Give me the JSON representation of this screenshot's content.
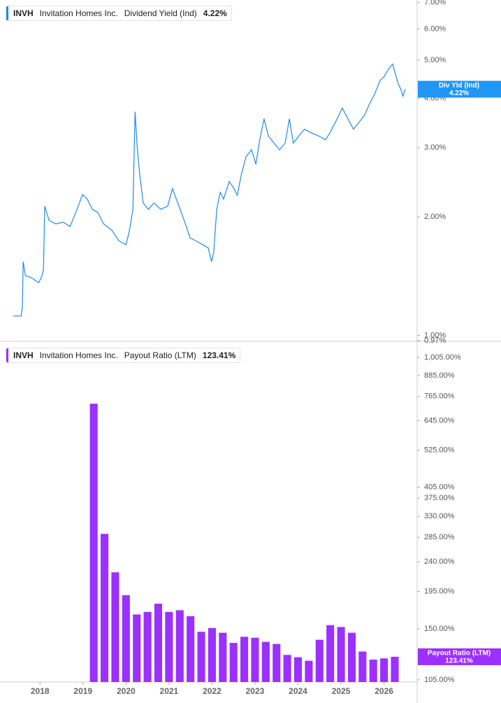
{
  "chart_data": [
    {
      "type": "line",
      "ticker": "INVH",
      "company": "Invitation Homes Inc.",
      "log_y": true,
      "xlim": [
        2017.07,
        2026.77
      ],
      "ylim": [
        0.97,
        7.11
      ],
      "yticks": [
        {
          "value": 0.97,
          "label": "0.97%"
        },
        {
          "value": 1,
          "label": "1.00%"
        },
        {
          "value": 2,
          "label": "2.00%"
        },
        {
          "value": 3,
          "label": "3.00%"
        },
        {
          "value": 4,
          "label": "4.00%"
        },
        {
          "value": 5,
          "label": "5.00%"
        },
        {
          "value": 6,
          "label": "6.00%"
        },
        {
          "value": 7,
          "label": "7.00%"
        }
      ],
      "series": [
        {
          "name": "Dividend Yield (Ind)",
          "color": "#2189ea",
          "x": [
            2017.37,
            2017.56,
            2017.59,
            2017.61,
            2017.66,
            2017.81,
            2017.97,
            2018.05,
            2018.08,
            2018.11,
            2018.21,
            2018.37,
            2018.54,
            2018.7,
            2018.86,
            2018.99,
            2019.1,
            2019.22,
            2019.35,
            2019.48,
            2019.67,
            2019.83,
            2020.0,
            2020.08,
            2020.16,
            2020.21,
            2020.26,
            2020.32,
            2020.4,
            2020.52,
            2020.65,
            2020.81,
            2020.97,
            2021.08,
            2021.17,
            2021.26,
            2021.38,
            2021.49,
            2021.62,
            2021.78,
            2021.91,
            2021.99,
            2022.04,
            2022.11,
            2022.19,
            2022.27,
            2022.4,
            2022.51,
            2022.59,
            2022.68,
            2022.79,
            2022.92,
            2023.02,
            2023.11,
            2023.21,
            2023.31,
            2023.44,
            2023.57,
            2023.7,
            2023.8,
            2023.89,
            2024.02,
            2024.15,
            2024.31,
            2024.48,
            2024.64,
            2024.74,
            2024.87,
            2025.03,
            2025.16,
            2025.29,
            2025.42,
            2025.55,
            2025.65,
            2025.78,
            2025.91,
            2026.0,
            2026.1,
            2026.2,
            2026.26,
            2026.33,
            2026.39,
            2026.44,
            2026.49
          ],
          "values": [
            1.12,
            1.12,
            1.18,
            1.54,
            1.42,
            1.4,
            1.36,
            1.42,
            1.47,
            2.13,
            1.96,
            1.92,
            1.94,
            1.89,
            2.09,
            2.28,
            2.22,
            2.09,
            2.05,
            1.92,
            1.85,
            1.74,
            1.7,
            1.85,
            2.09,
            3.7,
            3.02,
            2.56,
            2.17,
            2.09,
            2.17,
            2.09,
            2.13,
            2.36,
            2.22,
            2.09,
            1.92,
            1.77,
            1.74,
            1.7,
            1.67,
            1.54,
            1.63,
            2.09,
            2.31,
            2.22,
            2.46,
            2.36,
            2.27,
            2.56,
            2.84,
            2.96,
            2.72,
            3.14,
            3.55,
            3.21,
            3.08,
            2.96,
            3.08,
            3.55,
            3.08,
            3.21,
            3.34,
            3.27,
            3.21,
            3.14,
            3.27,
            3.48,
            3.78,
            3.55,
            3.34,
            3.48,
            3.63,
            3.85,
            4.1,
            4.45,
            4.54,
            4.74,
            4.89,
            4.63,
            4.36,
            4.22,
            4.05,
            4.22
          ]
        }
      ],
      "current": {
        "label": "Div Yld (Ind)",
        "value": 4.22,
        "value_label": "4.22%",
        "color": "#2196f3"
      }
    },
    {
      "type": "bar",
      "ticker": "INVH",
      "company": "Invitation Homes Inc.",
      "log_y": true,
      "xlim": [
        2017.07,
        2026.77
      ],
      "xticks": [
        2018,
        2019,
        2020,
        2021,
        2022,
        2023,
        2024,
        2025,
        2026
      ],
      "ylim": [
        103.4,
        1114
      ],
      "yticks": [
        {
          "value": 105,
          "label": "105.00%"
        },
        {
          "value": 150,
          "label": "150.00%"
        },
        {
          "value": 195,
          "label": "195.00%"
        },
        {
          "value": 240,
          "label": "240.00%"
        },
        {
          "value": 285,
          "label": "285.00%"
        },
        {
          "value": 330,
          "label": "330.00%"
        },
        {
          "value": 375,
          "label": "375.00%"
        },
        {
          "value": 405,
          "label": "405.00%"
        },
        {
          "value": 525,
          "label": "525.00%"
        },
        {
          "value": 645,
          "label": "645.00%"
        },
        {
          "value": 765,
          "label": "765.00%"
        },
        {
          "value": 885,
          "label": "885.00%"
        },
        {
          "value": 1005,
          "label": "1,005.00%"
        }
      ],
      "series": [
        {
          "name": "Payout Ratio (LTM)",
          "color": "#9b30ff",
          "x": [
            2019.25,
            2019.5,
            2019.75,
            2020,
            2020.25,
            2020.5,
            2020.75,
            2021,
            2021.25,
            2021.5,
            2021.75,
            2022,
            2022.25,
            2022.5,
            2022.75,
            2023,
            2023.25,
            2023.5,
            2023.75,
            2024,
            2024.25,
            2024.5,
            2024.75,
            2025,
            2025.25,
            2025.5,
            2025.75,
            2026,
            2026.25
          ],
          "values": [
            727,
            292,
            223,
            190,
            166,
            169,
            179,
            169,
            171,
            164,
            147,
            151,
            146,
            136,
            142,
            141,
            137,
            135,
            125,
            123,
            120,
            139,
            154,
            152,
            146,
            128,
            121,
            122,
            123.41
          ]
        }
      ],
      "current": {
        "label": "Payout Ratio (LTM)",
        "value": 123.41,
        "value_label": "123.41%",
        "color": "#9b30ff"
      }
    }
  ]
}
